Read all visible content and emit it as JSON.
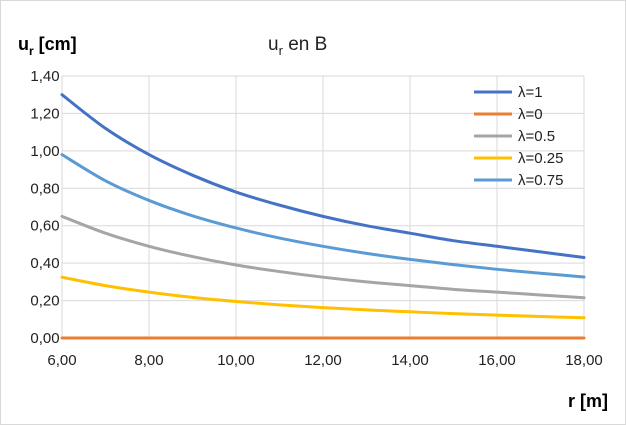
{
  "chart_data": {
    "type": "line",
    "title": "u",
    "title_sub": "r",
    "title_rest": " en B",
    "ylabel": "u",
    "ylabel_sub": "r",
    "ylabel_rest": " [cm]",
    "xlabel": "r [m]",
    "xlim": [
      6,
      18
    ],
    "ylim": [
      0,
      1.4
    ],
    "x_ticks": [
      "6,00",
      "8,00",
      "10,00",
      "12,00",
      "14,00",
      "16,00",
      "18,00"
    ],
    "y_ticks": [
      "0,00",
      "0,20",
      "0,40",
      "0,60",
      "0,80",
      "1,00",
      "1,20",
      "1,40"
    ],
    "grid": true,
    "legend_position": "top-right",
    "x": [
      6,
      7,
      8,
      9,
      10,
      11,
      12,
      13,
      14,
      15,
      16,
      17,
      18
    ],
    "series": [
      {
        "name": "λ=1",
        "color": "#4472c4",
        "values": [
          1.3,
          1.12,
          0.98,
          0.87,
          0.78,
          0.71,
          0.65,
          0.6,
          0.56,
          0.52,
          0.49,
          0.46,
          0.43
        ]
      },
      {
        "name": "λ=0",
        "color": "#ed7d31",
        "values": [
          0,
          0,
          0,
          0,
          0,
          0,
          0,
          0,
          0,
          0,
          0,
          0,
          0
        ]
      },
      {
        "name": "λ=0.5",
        "color": "#a5a5a5",
        "values": [
          0.65,
          0.56,
          0.49,
          0.435,
          0.39,
          0.355,
          0.325,
          0.3,
          0.28,
          0.26,
          0.245,
          0.23,
          0.215
        ]
      },
      {
        "name": "λ=0.25",
        "color": "#ffc000",
        "values": [
          0.325,
          0.28,
          0.245,
          0.217,
          0.195,
          0.177,
          0.162,
          0.15,
          0.14,
          0.13,
          0.122,
          0.115,
          0.108
        ]
      },
      {
        "name": "λ=0.75",
        "color": "#5b9bd5",
        "values": [
          0.98,
          0.84,
          0.735,
          0.653,
          0.588,
          0.534,
          0.49,
          0.452,
          0.42,
          0.392,
          0.367,
          0.346,
          0.326
        ]
      }
    ]
  }
}
